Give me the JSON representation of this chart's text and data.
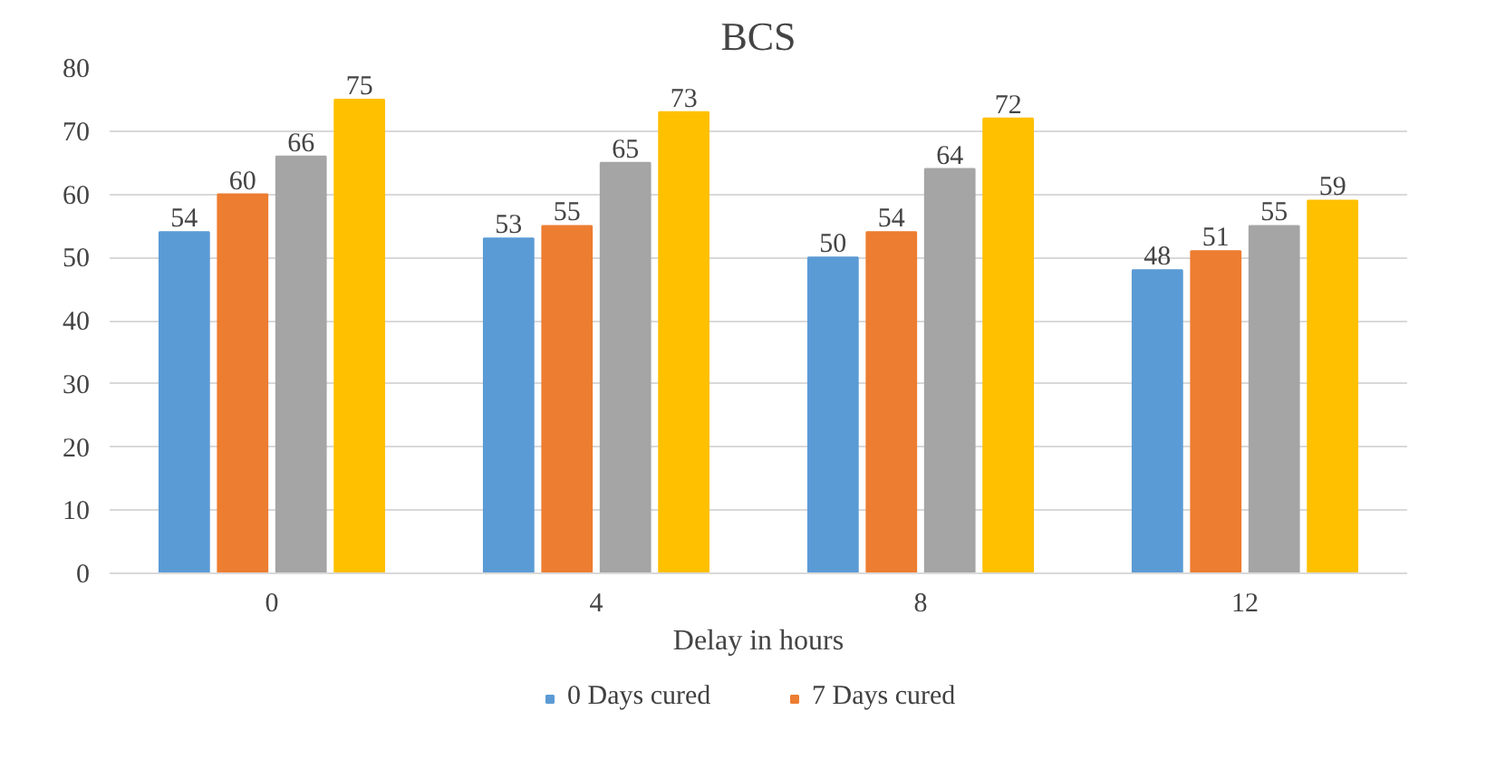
{
  "chart_data": {
    "type": "bar",
    "title": "BCS",
    "xlabel": "Delay in hours",
    "categories": [
      "0",
      "4",
      "8",
      "12"
    ],
    "series": [
      {
        "name": "0 Days cured",
        "color": "#5b9bd5",
        "values": [
          54,
          53,
          50,
          48
        ]
      },
      {
        "name": "7 Days cured",
        "color": "#ed7d31",
        "values": [
          60,
          55,
          54,
          51
        ]
      },
      {
        "color": "#a5a5a5",
        "values": [
          66,
          65,
          64,
          55
        ]
      },
      {
        "color": "#ffc000",
        "values": [
          75,
          73,
          72,
          59
        ]
      }
    ],
    "ylim": [
      0,
      80
    ],
    "yticks": [
      0,
      10,
      20,
      30,
      40,
      50,
      60,
      70,
      80
    ],
    "grid": "y",
    "data_labels": true,
    "legend": "bottom"
  }
}
